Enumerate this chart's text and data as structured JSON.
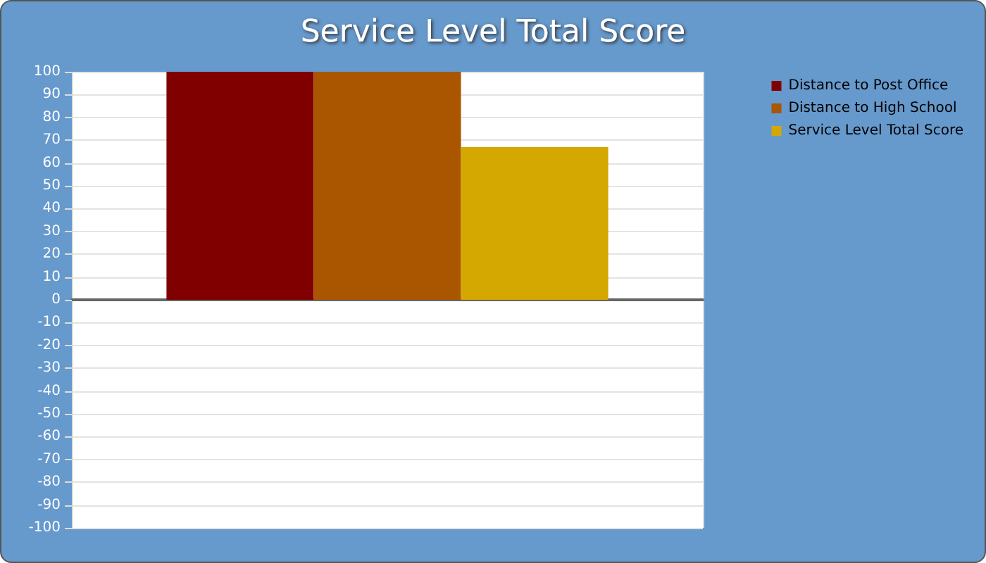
{
  "chart_data": {
    "type": "bar",
    "title": "Service Level Total Score",
    "categories": [
      null
    ],
    "series": [
      {
        "name": "Distance to Post Office",
        "color": "#800000",
        "values": [
          100
        ]
      },
      {
        "name": "Distance to High School",
        "color": "#aa5500",
        "values": [
          100
        ]
      },
      {
        "name": "Service Level Total Score",
        "color": "#d4a800",
        "values": [
          67
        ]
      }
    ],
    "ylim": [
      -100,
      100
    ],
    "yticks": [
      -100,
      -90,
      -80,
      -70,
      -60,
      -50,
      -40,
      -30,
      -20,
      -10,
      0,
      10,
      20,
      30,
      40,
      50,
      60,
      70,
      80,
      90,
      100
    ],
    "grid": true,
    "legend": "top right"
  }
}
